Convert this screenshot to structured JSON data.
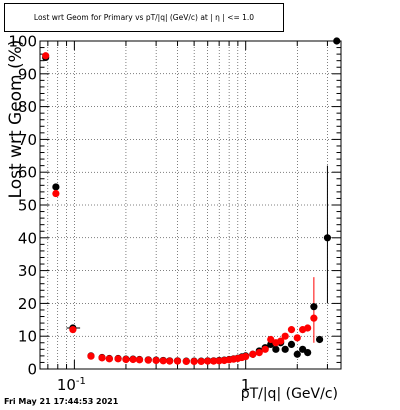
{
  "chart_data": {
    "type": "scatter",
    "title": "Lost wrt Geom for Primary vs pT/|q| (GeV/c) at | η | <= 1.0",
    "xlabel": "pT/|q| (GeV/c)",
    "ylabel": "Lost wrt Geom (%)",
    "xscale": "log",
    "xlim": [
      0.063,
      3.6
    ],
    "ylim": [
      0,
      100
    ],
    "grid": true,
    "x_tick_labels": [
      "10^-1",
      "1"
    ],
    "y_tick_labels": [
      "0",
      "10",
      "20",
      "30",
      "40",
      "50",
      "60",
      "70",
      "80",
      "90",
      "100"
    ],
    "footer": "Fri May 21 17:44:53 2021",
    "series": [
      {
        "color": "#000000",
        "points": [
          {
            "x": 0.068,
            "y": 95
          },
          {
            "x": 0.078,
            "y": 55.5
          },
          {
            "x": 0.098,
            "y": 12.5
          },
          {
            "x": 0.125,
            "y": 4
          },
          {
            "x": 0.145,
            "y": 3.5
          },
          {
            "x": 0.16,
            "y": 3.2
          },
          {
            "x": 0.18,
            "y": 3.2
          },
          {
            "x": 0.2,
            "y": 3
          },
          {
            "x": 0.22,
            "y": 3
          },
          {
            "x": 0.24,
            "y": 2.9
          },
          {
            "x": 0.27,
            "y": 2.8
          },
          {
            "x": 0.3,
            "y": 2.7
          },
          {
            "x": 0.33,
            "y": 2.6
          },
          {
            "x": 0.36,
            "y": 2.5
          },
          {
            "x": 0.4,
            "y": 2.5
          },
          {
            "x": 0.45,
            "y": 2.4
          },
          {
            "x": 0.5,
            "y": 2.4
          },
          {
            "x": 0.55,
            "y": 2.4
          },
          {
            "x": 0.6,
            "y": 2.5
          },
          {
            "x": 0.65,
            "y": 2.5
          },
          {
            "x": 0.7,
            "y": 2.6
          },
          {
            "x": 0.75,
            "y": 2.7
          },
          {
            "x": 0.8,
            "y": 2.9
          },
          {
            "x": 0.85,
            "y": 3.1
          },
          {
            "x": 0.9,
            "y": 3.3
          },
          {
            "x": 0.95,
            "y": 3.7
          },
          {
            "x": 1.0,
            "y": 4
          },
          {
            "x": 1.1,
            "y": 4.5
          },
          {
            "x": 1.2,
            "y": 5.5
          },
          {
            "x": 1.3,
            "y": 6.5
          },
          {
            "x": 1.4,
            "y": 7.5
          },
          {
            "x": 1.5,
            "y": 6
          },
          {
            "x": 1.6,
            "y": 8
          },
          {
            "x": 1.7,
            "y": 6
          },
          {
            "x": 1.85,
            "y": 7.5
          },
          {
            "x": 2.0,
            "y": 4.5
          },
          {
            "x": 2.15,
            "y": 6
          },
          {
            "x": 2.3,
            "y": 5
          },
          {
            "x": 2.5,
            "y": 19
          },
          {
            "x": 2.7,
            "y": 9
          },
          {
            "x": 3.0,
            "y": 40
          },
          {
            "x": 3.4,
            "y": 100
          }
        ]
      },
      {
        "color": "#ff0000",
        "points": [
          {
            "x": 0.068,
            "y": 95.5
          },
          {
            "x": 0.078,
            "y": 53.5
          },
          {
            "x": 0.098,
            "y": 12
          },
          {
            "x": 0.125,
            "y": 3.9
          },
          {
            "x": 0.145,
            "y": 3.4
          },
          {
            "x": 0.16,
            "y": 3.1
          },
          {
            "x": 0.18,
            "y": 3.1
          },
          {
            "x": 0.2,
            "y": 2.9
          },
          {
            "x": 0.22,
            "y": 2.9
          },
          {
            "x": 0.24,
            "y": 2.8
          },
          {
            "x": 0.27,
            "y": 2.7
          },
          {
            "x": 0.3,
            "y": 2.6
          },
          {
            "x": 0.33,
            "y": 2.5
          },
          {
            "x": 0.36,
            "y": 2.4
          },
          {
            "x": 0.4,
            "y": 2.4
          },
          {
            "x": 0.45,
            "y": 2.3
          },
          {
            "x": 0.5,
            "y": 2.3
          },
          {
            "x": 0.55,
            "y": 2.3
          },
          {
            "x": 0.6,
            "y": 2.4
          },
          {
            "x": 0.65,
            "y": 2.4
          },
          {
            "x": 0.7,
            "y": 2.5
          },
          {
            "x": 0.75,
            "y": 2.6
          },
          {
            "x": 0.8,
            "y": 2.8
          },
          {
            "x": 0.85,
            "y": 3
          },
          {
            "x": 0.9,
            "y": 3.2
          },
          {
            "x": 0.95,
            "y": 3.5
          },
          {
            "x": 1.0,
            "y": 3.8
          },
          {
            "x": 1.1,
            "y": 4.5
          },
          {
            "x": 1.2,
            "y": 5
          },
          {
            "x": 1.3,
            "y": 6
          },
          {
            "x": 1.4,
            "y": 9
          },
          {
            "x": 1.5,
            "y": 8
          },
          {
            "x": 1.6,
            "y": 8.5
          },
          {
            "x": 1.7,
            "y": 10
          },
          {
            "x": 1.85,
            "y": 12
          },
          {
            "x": 2.0,
            "y": 9.5
          },
          {
            "x": 2.15,
            "y": 12
          },
          {
            "x": 2.3,
            "y": 12.5
          },
          {
            "x": 2.5,
            "y": 15.5
          }
        ]
      }
    ]
  }
}
